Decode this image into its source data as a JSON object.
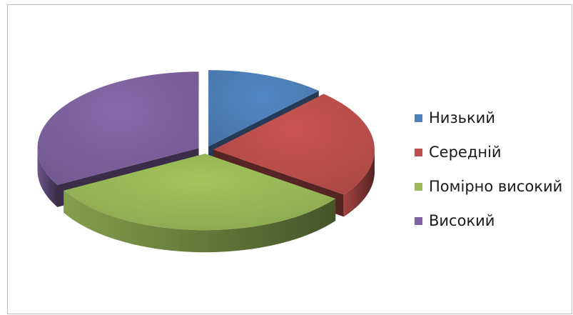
{
  "chart_data": {
    "type": "pie",
    "title": "",
    "style": "3d-exploded",
    "categories": [
      "Низький",
      "Середній",
      "Помірно високий",
      "Високий"
    ],
    "values": [
      12,
      23,
      32,
      33
    ],
    "colors": [
      "#4f81bd",
      "#c0504d",
      "#9bbb59",
      "#8064a2"
    ],
    "legend": "right"
  }
}
